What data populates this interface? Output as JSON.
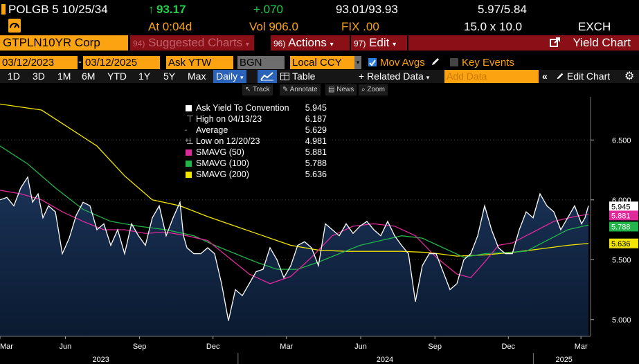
{
  "header": {
    "ticker": "POLGB 5 10/25/34",
    "arrow": "↑",
    "price": "93.17",
    "change": "+.070",
    "bid_ask": "93.01/93.93",
    "yields": "5.97/5.84",
    "time": "At 0:04d",
    "volume": "Vol 906.0",
    "fix": "FIX .00",
    "size": "15.0 x 10.0",
    "exchange": "EXCH"
  },
  "menu": {
    "security": "GTPLN10YR Corp",
    "suggested_num": "94)",
    "suggested": "Suggested Charts",
    "actions_num": "96)",
    "actions": "Actions",
    "edit_num": "97)",
    "edit": "Edit",
    "yield_chart": "Yield Chart"
  },
  "inputs": {
    "start_date": "03/12/2023",
    "end_date": "03/12/2025",
    "field": "Ask YTW",
    "source": "BGN",
    "currency": "Local CCY",
    "mov_avgs": "Mov Avgs",
    "key_events": "Key Events"
  },
  "periods": [
    "1D",
    "3D",
    "1M",
    "6M",
    "YTD",
    "1Y",
    "5Y",
    "Max"
  ],
  "period_selected": "Daily",
  "toolbar": {
    "table": "Table",
    "related": "+ Related Data",
    "add_data_placeholder": "Add Data",
    "edit_chart": "Edit Chart"
  },
  "tools": [
    "Track",
    "Annotate",
    "News",
    "Zoom"
  ],
  "legend": [
    {
      "label": "Ask Yield To Convention",
      "value": "5.945",
      "color": "#ffffff"
    },
    {
      "label": "High on 04/13/23",
      "value": "6.187",
      "color": "#cfcfcf"
    },
    {
      "label": "Average",
      "value": "5.629",
      "color": "#cfcfcf"
    },
    {
      "label": "Low on 12/20/23",
      "value": "4.981",
      "color": "#cfcfcf"
    },
    {
      "label": "SMAVG (50)",
      "value": "5.881",
      "color": "#e0299a"
    },
    {
      "label": "SMAVG (100)",
      "value": "5.788",
      "color": "#21b54a"
    },
    {
      "label": "SMAVG (200)",
      "value": "5.636",
      "color": "#f2e600"
    }
  ],
  "chart_data": {
    "type": "area",
    "ylim": [
      4.86,
      6.86
    ],
    "yticks": [
      "5.000",
      "5.500",
      "6.000",
      "6.500"
    ],
    "xticks": [
      "Mar",
      "Jun",
      "Sep",
      "Dec",
      "Mar",
      "Jun",
      "Sep",
      "Dec",
      "Mar"
    ],
    "years": [
      "2023",
      "2024",
      "2025"
    ],
    "x_start": "2023-03-12",
    "x_end": "2025-03-12",
    "series": [
      {
        "name": "Ask Yield To Convention",
        "color": "#ffffff",
        "points": [
          [
            0,
            6.0
          ],
          [
            10,
            6.02
          ],
          [
            20,
            5.95
          ],
          [
            30,
            6.1
          ],
          [
            40,
            6.19
          ],
          [
            47,
            5.98
          ],
          [
            55,
            6.05
          ],
          [
            62,
            5.85
          ],
          [
            70,
            5.95
          ],
          [
            80,
            5.9
          ],
          [
            90,
            5.55
          ],
          [
            100,
            5.68
          ],
          [
            110,
            5.87
          ],
          [
            120,
            5.98
          ],
          [
            130,
            5.95
          ],
          [
            140,
            5.75
          ],
          [
            150,
            5.8
          ],
          [
            160,
            5.62
          ],
          [
            170,
            5.75
          ],
          [
            180,
            5.55
          ],
          [
            190,
            5.8
          ],
          [
            200,
            5.7
          ],
          [
            210,
            5.62
          ],
          [
            220,
            5.85
          ],
          [
            230,
            5.95
          ],
          [
            240,
            5.7
          ],
          [
            250,
            5.85
          ],
          [
            260,
            5.98
          ],
          [
            265,
            5.7
          ],
          [
            270,
            5.6
          ],
          [
            280,
            5.55
          ],
          [
            290,
            5.55
          ],
          [
            300,
            5.6
          ],
          [
            310,
            5.55
          ],
          [
            320,
            5.3
          ],
          [
            330,
            4.99
          ],
          [
            340,
            5.25
          ],
          [
            350,
            5.2
          ],
          [
            360,
            5.3
          ],
          [
            370,
            5.4
          ],
          [
            380,
            5.42
          ],
          [
            390,
            5.6
          ],
          [
            400,
            5.5
          ],
          [
            410,
            5.35
          ],
          [
            420,
            5.45
          ],
          [
            430,
            5.62
          ],
          [
            440,
            5.65
          ],
          [
            450,
            5.6
          ],
          [
            460,
            5.45
          ],
          [
            470,
            5.8
          ],
          [
            480,
            5.75
          ],
          [
            490,
            5.7
          ],
          [
            500,
            5.8
          ],
          [
            510,
            5.72
          ],
          [
            520,
            5.78
          ],
          [
            530,
            5.82
          ],
          [
            540,
            5.75
          ],
          [
            550,
            5.7
          ],
          [
            560,
            5.82
          ],
          [
            570,
            5.7
          ],
          [
            580,
            5.62
          ],
          [
            590,
            5.55
          ],
          [
            600,
            5.15
          ],
          [
            605,
            5.3
          ],
          [
            610,
            5.45
          ],
          [
            620,
            5.55
          ],
          [
            630,
            5.55
          ],
          [
            640,
            5.4
          ],
          [
            650,
            5.25
          ],
          [
            660,
            5.3
          ],
          [
            670,
            5.5
          ],
          [
            680,
            5.55
          ],
          [
            690,
            5.7
          ],
          [
            700,
            5.95
          ],
          [
            710,
            5.75
          ],
          [
            720,
            5.6
          ],
          [
            730,
            5.55
          ],
          [
            740,
            5.55
          ],
          [
            750,
            5.75
          ],
          [
            760,
            5.9
          ],
          [
            770,
            5.85
          ],
          [
            780,
            6.05
          ],
          [
            790,
            5.95
          ],
          [
            800,
            5.9
          ],
          [
            810,
            5.75
          ],
          [
            820,
            5.85
          ],
          [
            830,
            5.95
          ],
          [
            840,
            5.8
          ],
          [
            845,
            5.85
          ],
          [
            850,
            5.95
          ]
        ]
      },
      {
        "name": "SMAVG (50)",
        "color": "#e0299a",
        "points": [
          [
            0,
            6.08
          ],
          [
            30,
            6.05
          ],
          [
            60,
            6.0
          ],
          [
            90,
            5.9
          ],
          [
            120,
            5.82
          ],
          [
            150,
            5.75
          ],
          [
            180,
            5.75
          ],
          [
            210,
            5.72
          ],
          [
            240,
            5.73
          ],
          [
            270,
            5.7
          ],
          [
            300,
            5.66
          ],
          [
            330,
            5.52
          ],
          [
            360,
            5.38
          ],
          [
            390,
            5.3
          ],
          [
            420,
            5.36
          ],
          [
            450,
            5.52
          ],
          [
            480,
            5.7
          ],
          [
            510,
            5.78
          ],
          [
            540,
            5.8
          ],
          [
            570,
            5.78
          ],
          [
            600,
            5.7
          ],
          [
            630,
            5.52
          ],
          [
            660,
            5.38
          ],
          [
            680,
            5.35
          ],
          [
            700,
            5.48
          ],
          [
            720,
            5.62
          ],
          [
            740,
            5.64
          ],
          [
            770,
            5.73
          ],
          [
            800,
            5.82
          ],
          [
            830,
            5.86
          ],
          [
            850,
            5.88
          ]
        ]
      },
      {
        "name": "SMAVG (100)",
        "color": "#21b54a",
        "points": [
          [
            0,
            6.45
          ],
          [
            40,
            6.3
          ],
          [
            80,
            6.1
          ],
          [
            120,
            5.92
          ],
          [
            160,
            5.82
          ],
          [
            200,
            5.78
          ],
          [
            240,
            5.75
          ],
          [
            280,
            5.7
          ],
          [
            310,
            5.62
          ],
          [
            340,
            5.55
          ],
          [
            370,
            5.48
          ],
          [
            400,
            5.42
          ],
          [
            430,
            5.42
          ],
          [
            460,
            5.48
          ],
          [
            490,
            5.55
          ],
          [
            520,
            5.62
          ],
          [
            550,
            5.66
          ],
          [
            580,
            5.7
          ],
          [
            610,
            5.68
          ],
          [
            640,
            5.6
          ],
          [
            670,
            5.52
          ],
          [
            700,
            5.55
          ],
          [
            730,
            5.56
          ],
          [
            760,
            5.57
          ],
          [
            790,
            5.66
          ],
          [
            820,
            5.75
          ],
          [
            850,
            5.79
          ]
        ]
      },
      {
        "name": "SMAVG (200)",
        "color": "#f2e600",
        "points": [
          [
            0,
            6.8
          ],
          [
            60,
            6.75
          ],
          [
            100,
            6.6
          ],
          [
            140,
            6.45
          ],
          [
            180,
            6.2
          ],
          [
            220,
            6.0
          ],
          [
            260,
            5.95
          ],
          [
            300,
            5.86
          ],
          [
            340,
            5.78
          ],
          [
            380,
            5.7
          ],
          [
            420,
            5.62
          ],
          [
            460,
            5.58
          ],
          [
            500,
            5.57
          ],
          [
            540,
            5.57
          ],
          [
            580,
            5.57
          ],
          [
            620,
            5.56
          ],
          [
            660,
            5.53
          ],
          [
            700,
            5.54
          ],
          [
            740,
            5.56
          ],
          [
            780,
            5.59
          ],
          [
            820,
            5.62
          ],
          [
            850,
            5.636
          ]
        ]
      }
    ],
    "last_values": [
      {
        "value": "5.945",
        "color": "#ffffff",
        "text": "#000000"
      },
      {
        "value": "5.881",
        "color": "#e0299a",
        "text": "#ffffff"
      },
      {
        "value": "5.788",
        "color": "#21b54a",
        "text": "#ffffff"
      },
      {
        "value": "5.636",
        "color": "#f2e600",
        "text": "#000000"
      }
    ]
  }
}
